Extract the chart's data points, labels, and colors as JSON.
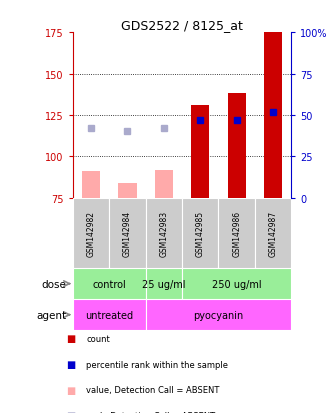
{
  "title": "GDS2522 / 8125_at",
  "samples": [
    "GSM142982",
    "GSM142984",
    "GSM142983",
    "GSM142985",
    "GSM142986",
    "GSM142987"
  ],
  "bar_values_red": [
    null,
    null,
    null,
    131,
    138,
    175
  ],
  "bar_values_pink": [
    91,
    84,
    92,
    null,
    null,
    null
  ],
  "blue_square_values": [
    117,
    115,
    117,
    122,
    122,
    127
  ],
  "blue_square_absent": [
    true,
    true,
    true,
    false,
    false,
    false
  ],
  "ylim": [
    75,
    175
  ],
  "yticks_left": [
    75,
    100,
    125,
    150,
    175
  ],
  "right_axis_labels": [
    "0",
    "25",
    "50",
    "75",
    "100%"
  ],
  "dose_data": [
    [
      "control",
      0,
      2
    ],
    [
      "25 ug/ml",
      2,
      3
    ],
    [
      "250 ug/ml",
      3,
      6
    ]
  ],
  "agent_data": [
    [
      "untreated",
      0,
      2
    ],
    [
      "pyocyanin",
      2,
      6
    ]
  ],
  "color_red": "#cc0000",
  "color_pink": "#ffaaaa",
  "color_blue_solid": "#0000cc",
  "color_blue_light": "#aaaacc",
  "color_green": "#99ee99",
  "color_magenta": "#ff66ff",
  "color_gray": "#cccccc",
  "bar_width": 0.5,
  "grid_yticks": [
    100,
    125,
    150
  ],
  "figsize": [
    3.31,
    4.14
  ],
  "dpi": 100
}
